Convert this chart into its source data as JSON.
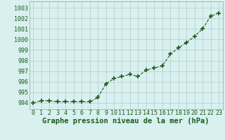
{
  "x": [
    0,
    1,
    2,
    3,
    4,
    5,
    6,
    7,
    8,
    9,
    10,
    11,
    12,
    13,
    14,
    15,
    16,
    17,
    18,
    19,
    20,
    21,
    22,
    23
  ],
  "y": [
    994.0,
    994.2,
    994.2,
    994.1,
    994.1,
    994.1,
    994.1,
    994.1,
    994.5,
    995.8,
    996.3,
    996.5,
    996.7,
    996.5,
    997.1,
    997.3,
    997.5,
    998.6,
    999.2,
    999.7,
    1000.3,
    1001.0,
    1002.2,
    1002.5
  ],
  "line_color": "#1a5c1a",
  "marker": "+",
  "marker_size": 5,
  "bg_color": "#d8f0f0",
  "grid_color": "#b8d0d0",
  "xlabel": "Graphe pression niveau de la mer (hPa)",
  "xlabel_fontsize": 7.5,
  "xlim": [
    -0.5,
    23.5
  ],
  "ylim": [
    993.4,
    1003.6
  ],
  "yticks": [
    994,
    995,
    996,
    997,
    998,
    999,
    1000,
    1001,
    1002,
    1003
  ],
  "xticks": [
    0,
    1,
    2,
    3,
    4,
    5,
    6,
    7,
    8,
    9,
    10,
    11,
    12,
    13,
    14,
    15,
    16,
    17,
    18,
    19,
    20,
    21,
    22,
    23
  ],
  "tick_fontsize": 6,
  "label_color": "#1a5c1a",
  "spine_color": "#8aaa8a"
}
